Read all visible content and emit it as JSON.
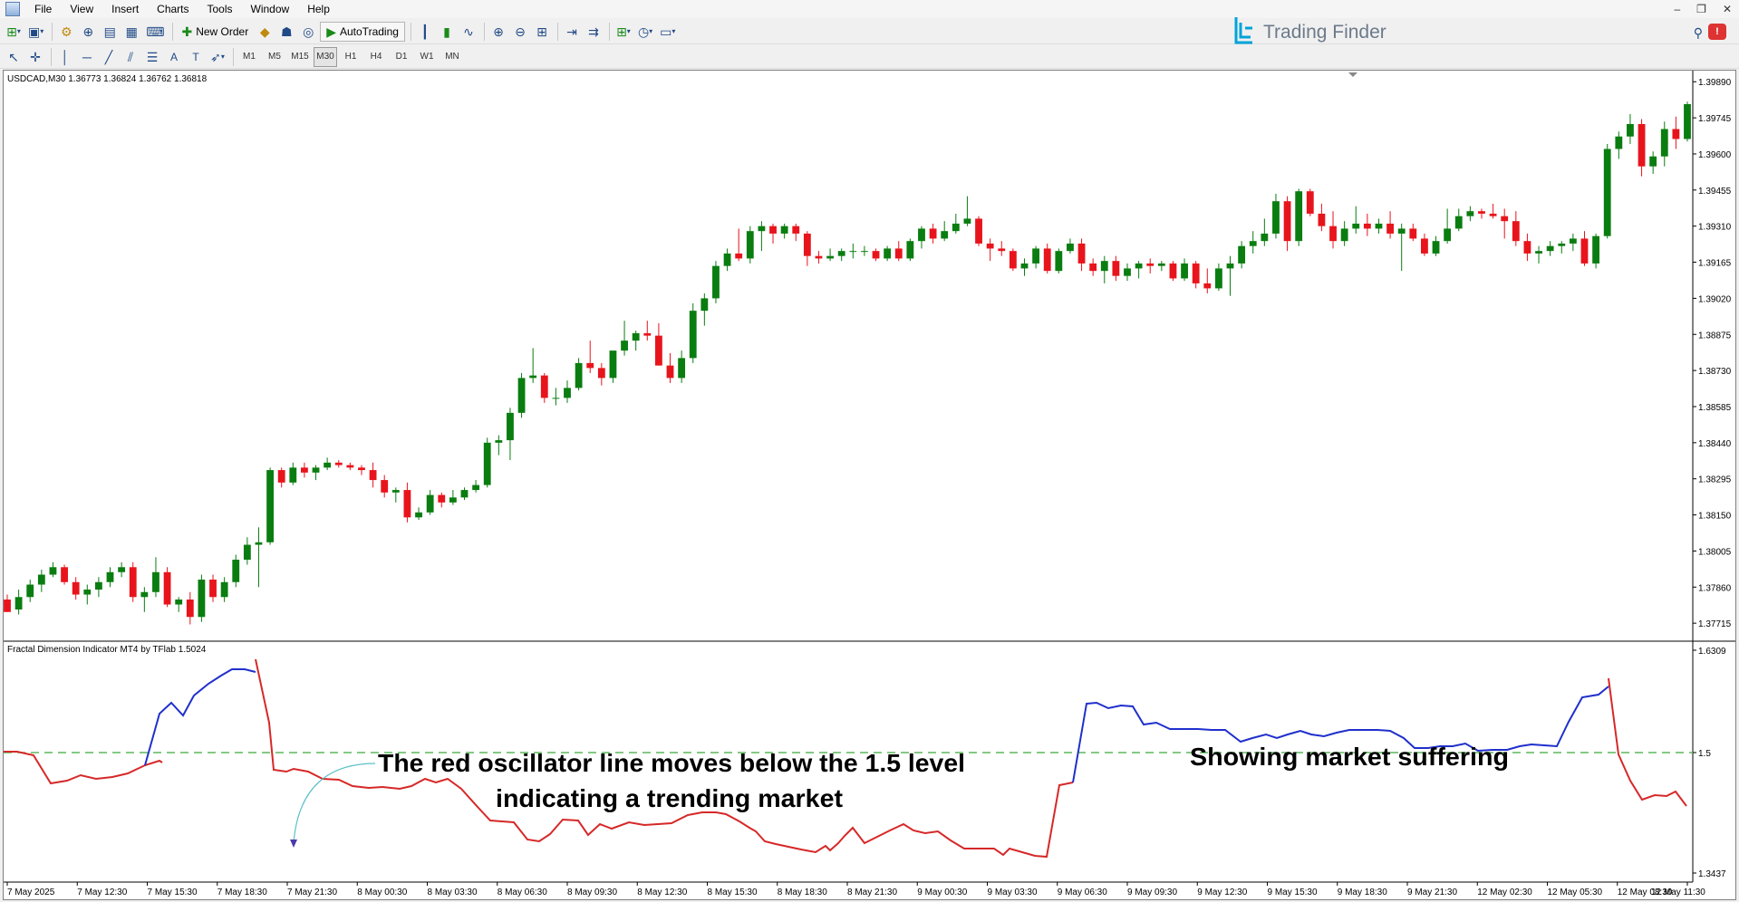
{
  "menu": {
    "items": [
      "File",
      "View",
      "Insert",
      "Charts",
      "Tools",
      "Window",
      "Help"
    ],
    "window_controls": [
      "–",
      "❐",
      "✕"
    ]
  },
  "toolbar": {
    "new_order_label": "New Order",
    "autotrading_label": "AutoTrading",
    "timeframes": [
      "M1",
      "M5",
      "M15",
      "M30",
      "H1",
      "H4",
      "D1",
      "W1",
      "MN"
    ],
    "active_timeframe": "M30"
  },
  "brand": {
    "name": "Trading Finder",
    "color": "#00a3d9"
  },
  "chart": {
    "info": "USDCAD,M30  1.36773 1.36824 1.36762 1.36818",
    "bull_color": "#0a7d10",
    "bear_color": "#e8141c",
    "price_axis_labels": [
      "1.39890",
      "1.39745",
      "1.39600",
      "1.39455",
      "1.39310",
      "1.39165",
      "1.39020",
      "1.38875",
      "1.38730",
      "1.38585",
      "1.38440",
      "1.38295",
      "1.38150",
      "1.38005",
      "1.37860",
      "1.37715"
    ],
    "price_range": [
      1.3765,
      1.3992
    ],
    "time_labels": [
      "7 May 2025",
      "7 May 12:30",
      "7 May 15:30",
      "7 May 18:30",
      "7 May 21:30",
      "8 May 00:30",
      "8 May 03:30",
      "8 May 06:30",
      "8 May 09:30",
      "8 May 12:30",
      "8 May 15:30",
      "8 May 18:30",
      "8 May 21:30",
      "9 May 00:30",
      "9 May 03:30",
      "9 May 06:30",
      "9 May 09:30",
      "9 May 12:30",
      "9 May 15:30",
      "9 May 18:30",
      "9 May 21:30",
      "12 May 02:30",
      "12 May 05:30",
      "12 May 08:30",
      "12 May 11:30"
    ]
  },
  "indicator": {
    "title": "Fractal Dimension Indicator MT4 by TFlab 1.5024",
    "axis_labels": [
      "1.6309",
      "1.5",
      "1.3437"
    ],
    "range": [
      1.3437,
      1.6309
    ],
    "level": 1.5,
    "level_color": "#5cb85c",
    "trend_color": "#d62828",
    "range_color": "#1f2fcc",
    "annotation_left_line1": "The red oscillator line moves below the 1.5 level",
    "annotation_left_line2": "indicating a trending market",
    "annotation_right": "Showing market suffering"
  },
  "chart_data": {
    "type": "candlestick",
    "title": "USDCAD,M30",
    "ylim": [
      1.3765,
      1.3992
    ],
    "candles": [
      [
        1.3781,
        1.3783,
        1.3776,
        1.3776
      ],
      [
        1.3777,
        1.3785,
        1.3775,
        1.3782
      ],
      [
        1.3782,
        1.3789,
        1.378,
        1.3787
      ],
      [
        1.3787,
        1.3793,
        1.3784,
        1.3791
      ],
      [
        1.3791,
        1.3796,
        1.379,
        1.3794
      ],
      [
        1.3794,
        1.3795,
        1.3787,
        1.3788
      ],
      [
        1.3788,
        1.379,
        1.3781,
        1.3783
      ],
      [
        1.3783,
        1.3787,
        1.3779,
        1.3785
      ],
      [
        1.3785,
        1.379,
        1.3782,
        1.3788
      ],
      [
        1.3788,
        1.3794,
        1.3786,
        1.3792
      ],
      [
        1.3792,
        1.3796,
        1.379,
        1.3794
      ],
      [
        1.3794,
        1.3796,
        1.378,
        1.3782
      ],
      [
        1.3782,
        1.3786,
        1.3776,
        1.3784
      ],
      [
        1.3784,
        1.3798,
        1.3782,
        1.3792
      ],
      [
        1.3792,
        1.3794,
        1.3778,
        1.3779
      ],
      [
        1.3779,
        1.3782,
        1.3776,
        1.3781
      ],
      [
        1.3781,
        1.3784,
        1.3771,
        1.3774
      ],
      [
        1.3774,
        1.3791,
        1.3772,
        1.3789
      ],
      [
        1.3789,
        1.3791,
        1.378,
        1.3782
      ],
      [
        1.3782,
        1.379,
        1.378,
        1.3788
      ],
      [
        1.3788,
        1.3799,
        1.3786,
        1.3797
      ],
      [
        1.3797,
        1.3806,
        1.3795,
        1.3803
      ],
      [
        1.3803,
        1.381,
        1.3786,
        1.3804
      ],
      [
        1.3804,
        1.3834,
        1.3803,
        1.3833
      ],
      [
        1.3833,
        1.3834,
        1.3826,
        1.3828
      ],
      [
        1.3828,
        1.3836,
        1.3827,
        1.3834
      ],
      [
        1.3834,
        1.3836,
        1.383,
        1.3832
      ],
      [
        1.3832,
        1.3835,
        1.3829,
        1.3834
      ],
      [
        1.3834,
        1.3838,
        1.3833,
        1.3836
      ],
      [
        1.3836,
        1.3837,
        1.3834,
        1.3835
      ],
      [
        1.3835,
        1.3836,
        1.3833,
        1.3834
      ],
      [
        1.3834,
        1.3835,
        1.3831,
        1.3833
      ],
      [
        1.3833,
        1.3836,
        1.3826,
        1.3829
      ],
      [
        1.3829,
        1.3831,
        1.3822,
        1.3824
      ],
      [
        1.3824,
        1.3826,
        1.382,
        1.3825
      ],
      [
        1.3825,
        1.3828,
        1.3812,
        1.3814
      ],
      [
        1.3814,
        1.3818,
        1.3813,
        1.3816
      ],
      [
        1.3816,
        1.3825,
        1.3815,
        1.3823
      ],
      [
        1.3823,
        1.3824,
        1.3818,
        1.382
      ],
      [
        1.382,
        1.3825,
        1.3819,
        1.3822
      ],
      [
        1.3822,
        1.3826,
        1.3821,
        1.3825
      ],
      [
        1.3825,
        1.3829,
        1.3824,
        1.3827
      ],
      [
        1.3827,
        1.3846,
        1.3826,
        1.3844
      ],
      [
        1.3844,
        1.3847,
        1.3839,
        1.3845
      ],
      [
        1.3845,
        1.3858,
        1.3837,
        1.3856
      ],
      [
        1.3856,
        1.3872,
        1.3854,
        1.387
      ],
      [
        1.387,
        1.3882,
        1.3868,
        1.3871
      ],
      [
        1.3871,
        1.3872,
        1.386,
        1.3862
      ],
      [
        1.3862,
        1.3866,
        1.3859,
        1.3862
      ],
      [
        1.3862,
        1.3869,
        1.386,
        1.3866
      ],
      [
        1.3866,
        1.3878,
        1.3865,
        1.3876
      ],
      [
        1.3876,
        1.3885,
        1.3872,
        1.3874
      ],
      [
        1.3874,
        1.3876,
        1.3867,
        1.387
      ],
      [
        1.387,
        1.388,
        1.3868,
        1.3881
      ],
      [
        1.3881,
        1.3893,
        1.3879,
        1.3885
      ],
      [
        1.3885,
        1.3889,
        1.3881,
        1.3888
      ],
      [
        1.3888,
        1.3893,
        1.3885,
        1.3887
      ],
      [
        1.3887,
        1.3892,
        1.3875,
        1.3875
      ],
      [
        1.3875,
        1.388,
        1.3868,
        1.387
      ],
      [
        1.387,
        1.3881,
        1.3868,
        1.3878
      ],
      [
        1.3878,
        1.39,
        1.3876,
        1.3897
      ],
      [
        1.3897,
        1.3904,
        1.3891,
        1.3902
      ],
      [
        1.3902,
        1.3917,
        1.39,
        1.3915
      ],
      [
        1.3915,
        1.3922,
        1.3913,
        1.392
      ],
      [
        1.392,
        1.393,
        1.3917,
        1.3918
      ],
      [
        1.3918,
        1.3931,
        1.3916,
        1.3929
      ],
      [
        1.3929,
        1.3933,
        1.3921,
        1.3931
      ],
      [
        1.3931,
        1.3932,
        1.3924,
        1.3928
      ],
      [
        1.3928,
        1.3932,
        1.3926,
        1.3931
      ],
      [
        1.3931,
        1.3932,
        1.3925,
        1.3928
      ],
      [
        1.3928,
        1.3929,
        1.3915,
        1.3919
      ],
      [
        1.3919,
        1.3921,
        1.3916,
        1.3918
      ],
      [
        1.3918,
        1.3922,
        1.3917,
        1.3919
      ],
      [
        1.3919,
        1.3922,
        1.3917,
        1.3921
      ],
      [
        1.3921,
        1.3924,
        1.3918,
        1.3921
      ],
      [
        1.3921,
        1.3923,
        1.3919,
        1.3921
      ],
      [
        1.3921,
        1.3922,
        1.3917,
        1.3918
      ],
      [
        1.3918,
        1.3923,
        1.3917,
        1.3922
      ],
      [
        1.3922,
        1.3925,
        1.3917,
        1.3918
      ],
      [
        1.3918,
        1.3926,
        1.3917,
        1.3925
      ],
      [
        1.3925,
        1.3931,
        1.3922,
        1.393
      ],
      [
        1.393,
        1.3932,
        1.3924,
        1.3926
      ],
      [
        1.3926,
        1.3933,
        1.3925,
        1.3929
      ],
      [
        1.3929,
        1.3936,
        1.3928,
        1.3932
      ],
      [
        1.3932,
        1.3943,
        1.3931,
        1.3934
      ],
      [
        1.3934,
        1.3935,
        1.3923,
        1.3924
      ],
      [
        1.3924,
        1.3926,
        1.3917,
        1.3922
      ],
      [
        1.3922,
        1.3925,
        1.3919,
        1.3921
      ],
      [
        1.3921,
        1.3922,
        1.3913,
        1.3914
      ],
      [
        1.3914,
        1.3918,
        1.3911,
        1.3916
      ],
      [
        1.3916,
        1.3923,
        1.3914,
        1.3922
      ],
      [
        1.3922,
        1.3924,
        1.3912,
        1.3913
      ],
      [
        1.3913,
        1.3922,
        1.3912,
        1.3921
      ],
      [
        1.3921,
        1.3926,
        1.392,
        1.3924
      ],
      [
        1.3924,
        1.3926,
        1.3913,
        1.3916
      ],
      [
        1.3916,
        1.3918,
        1.3911,
        1.3913
      ],
      [
        1.3913,
        1.3919,
        1.3908,
        1.3917
      ],
      [
        1.3917,
        1.3919,
        1.3909,
        1.3911
      ],
      [
        1.3911,
        1.3916,
        1.3909,
        1.3914
      ],
      [
        1.3914,
        1.3917,
        1.391,
        1.3916
      ],
      [
        1.3916,
        1.3918,
        1.3912,
        1.3915
      ],
      [
        1.3915,
        1.3917,
        1.3913,
        1.3916
      ],
      [
        1.3916,
        1.3917,
        1.3909,
        1.391
      ],
      [
        1.391,
        1.3918,
        1.3909,
        1.3916
      ],
      [
        1.3916,
        1.3917,
        1.3906,
        1.3908
      ],
      [
        1.3908,
        1.3914,
        1.3904,
        1.3906
      ],
      [
        1.3906,
        1.3916,
        1.3905,
        1.3914
      ],
      [
        1.3914,
        1.3919,
        1.3903,
        1.3916
      ],
      [
        1.3916,
        1.3925,
        1.3914,
        1.3923
      ],
      [
        1.3923,
        1.3929,
        1.392,
        1.3925
      ],
      [
        1.3925,
        1.3934,
        1.3923,
        1.3928
      ],
      [
        1.3928,
        1.3944,
        1.3926,
        1.3941
      ],
      [
        1.3941,
        1.3943,
        1.3921,
        1.3925
      ],
      [
        1.3925,
        1.3946,
        1.3923,
        1.3945
      ],
      [
        1.3945,
        1.3946,
        1.3935,
        1.3936
      ],
      [
        1.3936,
        1.394,
        1.3929,
        1.3931
      ],
      [
        1.3931,
        1.3937,
        1.3922,
        1.3925
      ],
      [
        1.3925,
        1.3933,
        1.3923,
        1.393
      ],
      [
        1.393,
        1.3939,
        1.3928,
        1.3932
      ],
      [
        1.3932,
        1.3936,
        1.3927,
        1.393
      ],
      [
        1.393,
        1.3934,
        1.3928,
        1.3932
      ],
      [
        1.3932,
        1.3937,
        1.3926,
        1.3928
      ],
      [
        1.3928,
        1.3932,
        1.3913,
        1.393
      ],
      [
        1.393,
        1.3932,
        1.3925,
        1.3926
      ],
      [
        1.3926,
        1.3928,
        1.3919,
        1.392
      ],
      [
        1.392,
        1.3927,
        1.3919,
        1.3925
      ],
      [
        1.3925,
        1.3938,
        1.3924,
        1.393
      ],
      [
        1.393,
        1.3938,
        1.3929,
        1.3935
      ],
      [
        1.3935,
        1.3939,
        1.3933,
        1.3937
      ],
      [
        1.3937,
        1.3938,
        1.3934,
        1.3936
      ],
      [
        1.3936,
        1.394,
        1.3934,
        1.3935
      ],
      [
        1.3935,
        1.3938,
        1.3926,
        1.3933
      ],
      [
        1.3933,
        1.3937,
        1.3923,
        1.3925
      ],
      [
        1.3925,
        1.3928,
        1.3917,
        1.392
      ],
      [
        1.392,
        1.3923,
        1.3916,
        1.3921
      ],
      [
        1.3921,
        1.3925,
        1.3919,
        1.3923
      ],
      [
        1.3923,
        1.3925,
        1.392,
        1.3924
      ],
      [
        1.3924,
        1.3928,
        1.3921,
        1.3926
      ],
      [
        1.3926,
        1.3929,
        1.3915,
        1.3916
      ],
      [
        1.3916,
        1.3928,
        1.3914,
        1.3927
      ],
      [
        1.3927,
        1.3964,
        1.3926,
        1.3962
      ],
      [
        1.3962,
        1.3969,
        1.3958,
        1.3967
      ],
      [
        1.3967,
        1.3976,
        1.3964,
        1.3972
      ],
      [
        1.3972,
        1.3974,
        1.3951,
        1.3955
      ],
      [
        1.3955,
        1.3961,
        1.3952,
        1.3959
      ],
      [
        1.3959,
        1.3973,
        1.3955,
        1.397
      ],
      [
        1.397,
        1.3975,
        1.3962,
        1.3966
      ],
      [
        1.3966,
        1.3981,
        1.3965,
        1.398
      ]
    ]
  }
}
